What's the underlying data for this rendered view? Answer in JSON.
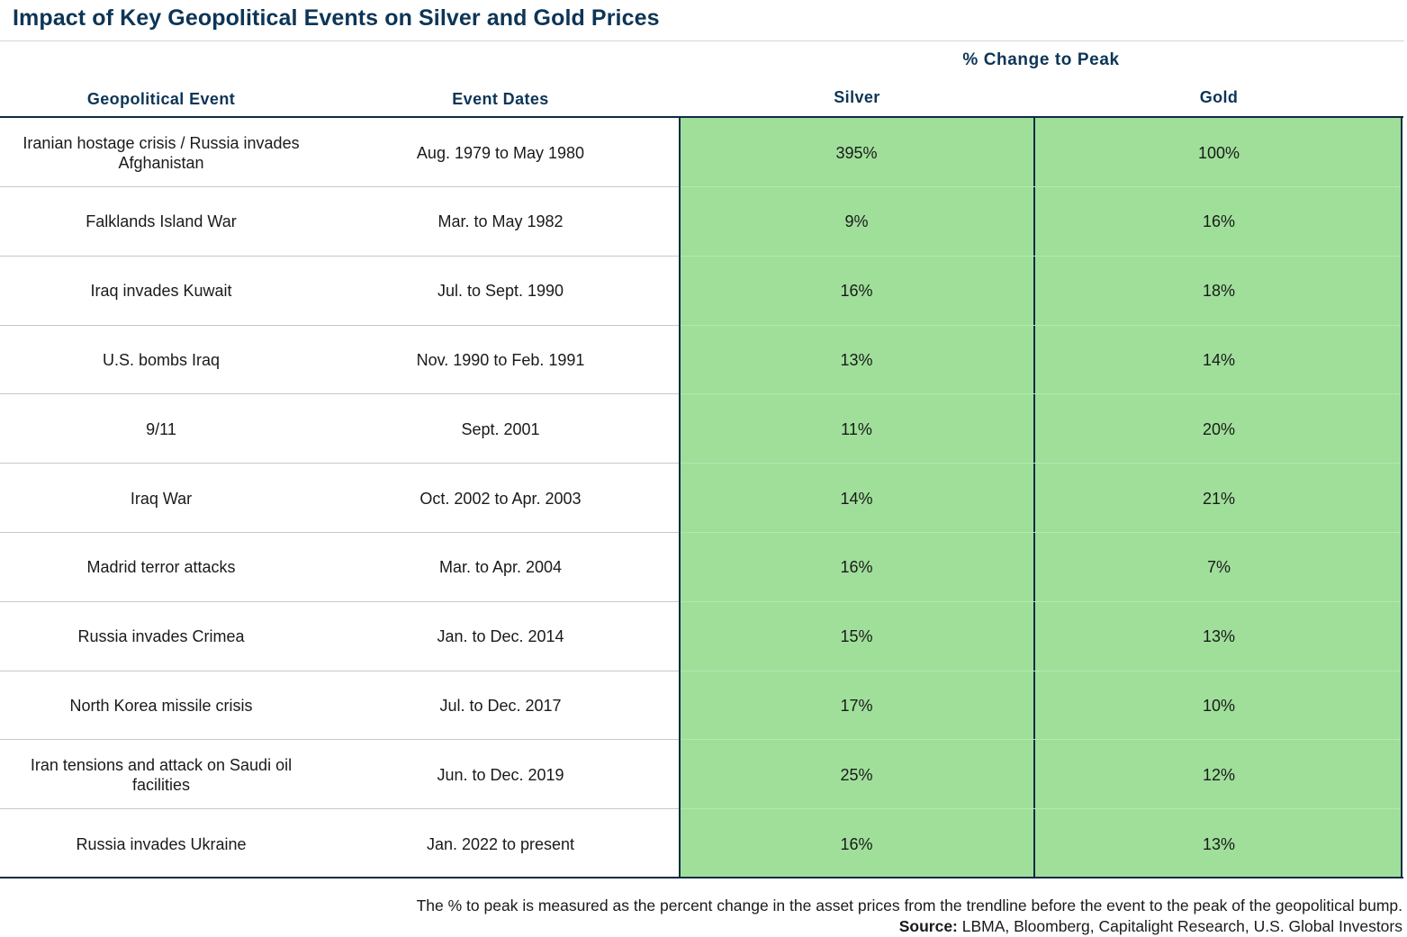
{
  "title": "Impact of Key Geopolitical Events on Silver and Gold Prices",
  "group_header": "% Change to Peak",
  "columns": {
    "event": "Geopolitical Event",
    "dates": "Event Dates",
    "silver": "Silver",
    "gold": "Gold"
  },
  "rows": [
    {
      "event": "Iranian hostage crisis / Russia invades Afghanistan",
      "dates": "Aug. 1979 to May 1980",
      "silver": "395%",
      "gold": "100%"
    },
    {
      "event": "Falklands Island War",
      "dates": "Mar. to May 1982",
      "silver": "9%",
      "gold": "16%"
    },
    {
      "event": "Iraq invades Kuwait",
      "dates": "Jul. to Sept. 1990",
      "silver": "16%",
      "gold": "18%"
    },
    {
      "event": "U.S. bombs Iraq",
      "dates": "Nov. 1990 to Feb. 1991",
      "silver": "13%",
      "gold": "14%"
    },
    {
      "event": "9/11",
      "dates": "Sept. 2001",
      "silver": "11%",
      "gold": "20%"
    },
    {
      "event": "Iraq War",
      "dates": "Oct. 2002 to Apr. 2003",
      "silver": "14%",
      "gold": "21%"
    },
    {
      "event": "Madrid terror attacks",
      "dates": "Mar. to Apr. 2004",
      "silver": "16%",
      "gold": "7%"
    },
    {
      "event": "Russia invades Crimea",
      "dates": "Jan. to Dec. 2014",
      "silver": "15%",
      "gold": "13%"
    },
    {
      "event": "North Korea missile crisis",
      "dates": "Jul. to Dec. 2017",
      "silver": "17%",
      "gold": "10%"
    },
    {
      "event": "Iran tensions and attack on Saudi oil facilities",
      "dates": "Jun. to Dec. 2019",
      "silver": "25%",
      "gold": "12%"
    },
    {
      "event": "Russia invades Ukraine",
      "dates": "Jan. 2022 to present",
      "silver": "16%",
      "gold": "13%"
    }
  ],
  "footnote": {
    "note": "The % to peak is measured as the percent change in the asset prices from the trendline before the event to the peak of the geopolitical bump.",
    "source_label": "Source:",
    "source_text": " LBMA, Bloomberg, Capitalight Research, U.S. Global Investors"
  },
  "colors": {
    "title": "#0d3557",
    "highlight_fill": "#9fdf9a",
    "border": "#0d2b45"
  }
}
